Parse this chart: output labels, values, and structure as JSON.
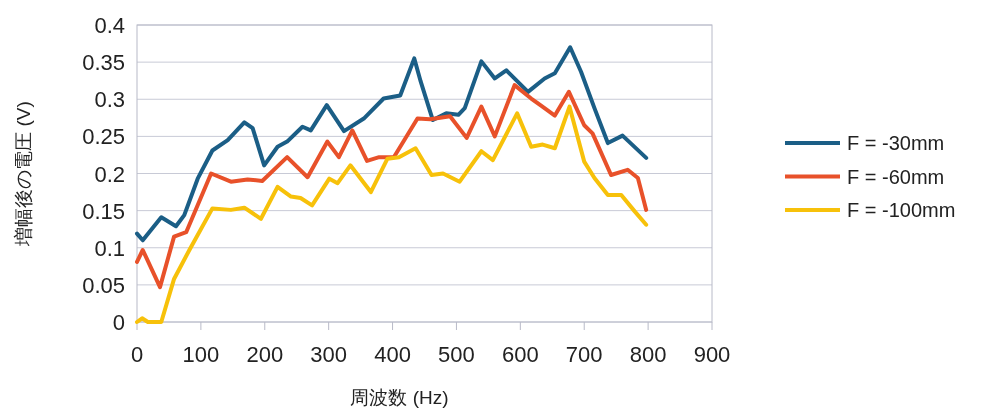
{
  "chart_data": {
    "type": "line",
    "xlabel": "周波数 (Hz)",
    "ylabel": "増幅後の電圧 (V)",
    "xlim": [
      0,
      900
    ],
    "xticks": [
      0,
      100,
      200,
      300,
      400,
      500,
      600,
      700,
      800,
      900
    ],
    "ylim": [
      0,
      0.4
    ],
    "yticks": [
      0,
      0.05,
      0.1,
      0.15,
      0.2,
      0.25,
      0.3,
      0.35,
      0.4
    ],
    "grid": "y",
    "legend": "right",
    "series": [
      {
        "name": "F = -30mm",
        "color": "#1b5e86",
        "x": [
          0,
          9,
          38,
          61,
          74,
          95,
          118,
          142,
          168,
          181,
          199,
          220,
          235,
          259,
          272,
          297,
          324,
          355,
          386,
          412,
          434,
          444,
          463,
          484,
          503,
          513,
          539,
          560,
          578,
          612,
          638,
          654,
          678,
          695,
          716,
          737,
          760,
          797
        ],
        "values": [
          0.119,
          0.11,
          0.141,
          0.129,
          0.144,
          0.193,
          0.231,
          0.245,
          0.269,
          0.261,
          0.211,
          0.236,
          0.243,
          0.263,
          0.258,
          0.292,
          0.257,
          0.274,
          0.301,
          0.305,
          0.355,
          0.324,
          0.272,
          0.281,
          0.279,
          0.288,
          0.351,
          0.328,
          0.339,
          0.31,
          0.328,
          0.335,
          0.37,
          0.337,
          0.288,
          0.241,
          0.251,
          0.221
        ]
      },
      {
        "name": "F = -60mm",
        "color": "#e8512a",
        "x": [
          0,
          9,
          36,
          58,
          77,
          116,
          147,
          173,
          196,
          235,
          267,
          298,
          316,
          337,
          360,
          379,
          402,
          439,
          459,
          490,
          516,
          539,
          560,
          591,
          617,
          633,
          654,
          676,
          700,
          713,
          742,
          768,
          784,
          797
        ],
        "values": [
          0.081,
          0.097,
          0.047,
          0.115,
          0.121,
          0.2,
          0.189,
          0.192,
          0.19,
          0.222,
          0.195,
          0.243,
          0.222,
          0.258,
          0.217,
          0.222,
          0.222,
          0.274,
          0.273,
          0.277,
          0.248,
          0.29,
          0.25,
          0.319,
          0.301,
          0.291,
          0.278,
          0.31,
          0.265,
          0.254,
          0.198,
          0.205,
          0.194,
          0.151
        ]
      },
      {
        "name": "F = -100mm",
        "color": "#f7c10a",
        "x": [
          0,
          8,
          17,
          38,
          58,
          82,
          118,
          147,
          168,
          194,
          220,
          241,
          256,
          274,
          301,
          314,
          334,
          366,
          392,
          410,
          436,
          461,
          479,
          505,
          539,
          557,
          595,
          617,
          635,
          654,
          677,
          700,
          716,
          737,
          758,
          779,
          797
        ],
        "values": [
          0.0,
          0.005,
          0.0,
          0.0,
          0.058,
          0.097,
          0.153,
          0.151,
          0.154,
          0.139,
          0.182,
          0.169,
          0.167,
          0.157,
          0.193,
          0.187,
          0.211,
          0.175,
          0.22,
          0.222,
          0.234,
          0.198,
          0.2,
          0.189,
          0.23,
          0.218,
          0.281,
          0.236,
          0.239,
          0.234,
          0.29,
          0.216,
          0.194,
          0.171,
          0.171,
          0.149,
          0.131
        ]
      }
    ]
  }
}
